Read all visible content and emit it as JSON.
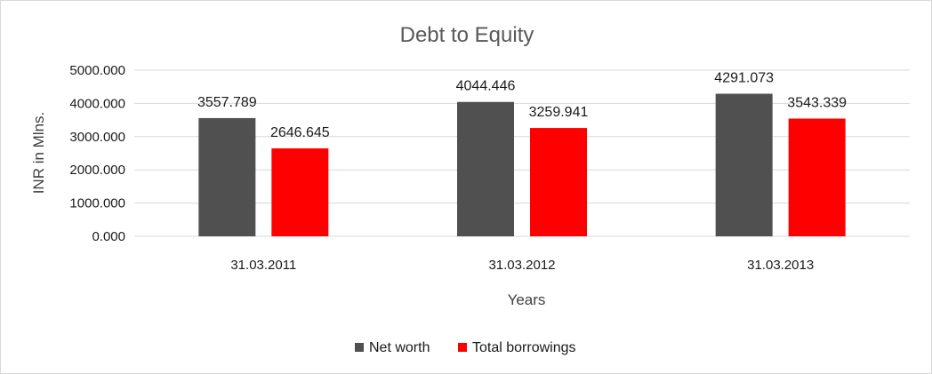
{
  "chart_data": {
    "type": "bar",
    "title": "Debt to Equity",
    "xlabel": "Years",
    "ylabel": "INR in Mlns.",
    "categories": [
      "31.03.2011",
      "31.03.2012",
      "31.03.2013"
    ],
    "series": [
      {
        "name": "Net worth",
        "color": "#505050",
        "values": [
          3557.789,
          4044.446,
          4291.073
        ],
        "labels": [
          "3557.789",
          "4044.446",
          "4291.073"
        ]
      },
      {
        "name": "Total borrowings",
        "color": "#ff0000",
        "values": [
          2646.645,
          3259.941,
          3543.339
        ],
        "labels": [
          "2646.645",
          "3259.941",
          "3543.339"
        ]
      }
    ],
    "ylim": [
      0,
      5000
    ],
    "yticks": [
      0,
      1000,
      2000,
      3000,
      4000,
      5000
    ],
    "ytick_labels": [
      "0.000",
      "1000.000",
      "2000.000",
      "3000.000",
      "4000.000",
      "5000.000"
    ],
    "grid": true,
    "legend_position": "bottom"
  }
}
